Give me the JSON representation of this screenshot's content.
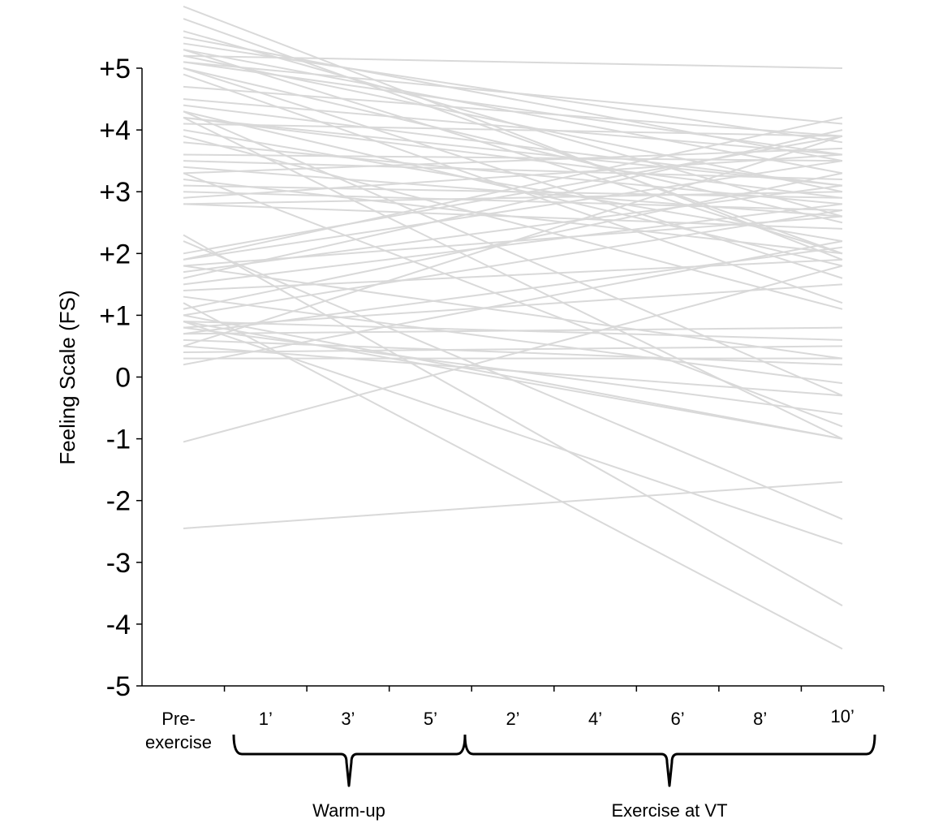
{
  "chart_data": {
    "type": "line",
    "title": "",
    "ylabel": "Feeling Scale (FS)",
    "ylim": [
      -5,
      5
    ],
    "y_ticks": [
      "+5",
      "+4",
      "+3",
      "+2",
      "+1",
      "0",
      "-1",
      "-2",
      "-3",
      "-4",
      "-5"
    ],
    "x_categories": [
      "Pre-exercise",
      "1’",
      "3’",
      "5’",
      "2’",
      "4’",
      "6’",
      "8’",
      "10’"
    ],
    "x_label_lines": {
      "pre_line1": "Pre-",
      "pre_line2": "exercise"
    },
    "groups": [
      {
        "label": "Warm-up",
        "categories": [
          "1’",
          "3’",
          "5’"
        ]
      },
      {
        "label": "Exercise at VT",
        "categories": [
          "2’",
          "4’",
          "6’",
          "8’",
          "10’"
        ]
      }
    ],
    "line_color": "#d9d9d9",
    "series_note_values": "Each line: [value at Pre-exercise, value at 10’] (linear fit)",
    "series": [
      [
        6.0,
        1.9
      ],
      [
        5.8,
        2.0
      ],
      [
        5.6,
        2.6
      ],
      [
        5.5,
        3.5
      ],
      [
        5.4,
        3.8
      ],
      [
        5.3,
        3.3
      ],
      [
        5.3,
        2.0
      ],
      [
        5.2,
        3.0
      ],
      [
        5.2,
        5.0
      ],
      [
        5.1,
        4.1
      ],
      [
        5.1,
        3.6
      ],
      [
        5.0,
        2.5
      ],
      [
        5.0,
        1.6
      ],
      [
        4.9,
        1.2
      ],
      [
        4.7,
        3.9
      ],
      [
        4.5,
        3.6
      ],
      [
        4.4,
        3.1
      ],
      [
        4.3,
        -0.3
      ],
      [
        4.3,
        1.8
      ],
      [
        4.2,
        -1.0
      ],
      [
        4.2,
        3.1
      ],
      [
        4.2,
        2.9
      ],
      [
        4.1,
        3.9
      ],
      [
        4.0,
        2.2
      ],
      [
        3.8,
        2.8
      ],
      [
        3.6,
        3.5
      ],
      [
        3.5,
        3.2
      ],
      [
        3.4,
        2.6
      ],
      [
        3.3,
        3.7
      ],
      [
        3.3,
        -0.8
      ],
      [
        3.2,
        2.0
      ],
      [
        3.1,
        2.9
      ],
      [
        3.0,
        2.7
      ],
      [
        2.9,
        3.6
      ],
      [
        2.8,
        3.0
      ],
      [
        2.8,
        2.4
      ],
      [
        2.3,
        -3.7
      ],
      [
        2.2,
        -2.3
      ],
      [
        1.9,
        4.2
      ],
      [
        1.9,
        3.5
      ],
      [
        1.8,
        2.6
      ],
      [
        1.8,
        0.3
      ],
      [
        1.7,
        3.1
      ],
      [
        1.6,
        4.0
      ],
      [
        1.5,
        2.8
      ],
      [
        1.4,
        1.9
      ],
      [
        1.3,
        -0.1
      ],
      [
        1.1,
        3.3
      ],
      [
        1.0,
        2.7
      ],
      [
        1.0,
        -1.0
      ],
      [
        0.9,
        -2.7
      ],
      [
        0.9,
        0.6
      ],
      [
        0.8,
        1.5
      ],
      [
        0.8,
        -0.6
      ],
      [
        0.7,
        0.8
      ],
      [
        0.7,
        2.1
      ],
      [
        0.6,
        0.2
      ],
      [
        0.5,
        3.9
      ],
      [
        0.5,
        -0.3
      ],
      [
        0.4,
        0.5
      ],
      [
        0.3,
        0.3
      ],
      [
        0.2,
        2.2
      ],
      [
        -1.05,
        1.8
      ],
      [
        -2.45,
        -1.7
      ],
      [
        1.2,
        -4.4
      ],
      [
        0.9,
        -1.0
      ],
      [
        3.9,
        1.1
      ],
      [
        2.0,
        3.9
      ]
    ]
  }
}
